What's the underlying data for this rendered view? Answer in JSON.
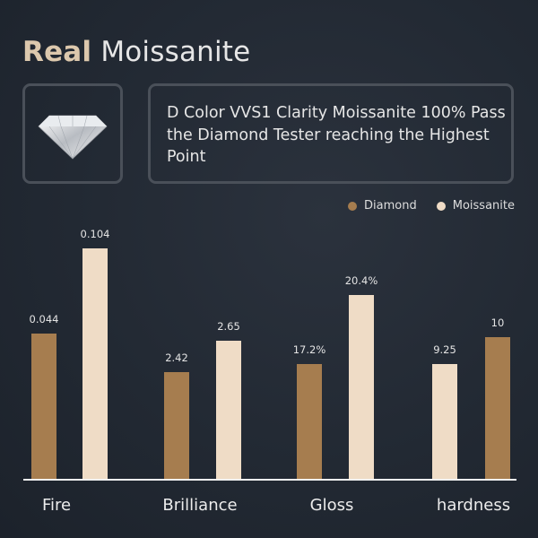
{
  "header": {
    "title_bold": "Real",
    "title_rest": "Moissanite"
  },
  "image_alt_icon": "diamond-gem-icon",
  "description": "D Color VVS1 Clarity Moissanite 100% Pass the Diamond Tester reaching the Highest Point",
  "colors": {
    "diamond": "#a67d4f",
    "moissanite": "#efdcc6",
    "title_accent": "#dcc8ad"
  },
  "chart_data": {
    "type": "bar",
    "title": "",
    "legend": {
      "placement": "top-right",
      "entries": [
        "Diamond",
        "Moissanite"
      ]
    },
    "categories": [
      "Fire",
      "Brilliance",
      "Gloss",
      "hardness"
    ],
    "groups": [
      {
        "category": "Fire",
        "bars": [
          {
            "series": "Diamond",
            "value": 0.044,
            "label": "0.044"
          },
          {
            "series": "Moissanite",
            "value": 0.104,
            "label": "0.104"
          }
        ]
      },
      {
        "category": "Brilliance",
        "bars": [
          {
            "series": "Diamond",
            "value": 2.42,
            "label": "2.42"
          },
          {
            "series": "Moissanite",
            "value": 2.65,
            "label": "2.65"
          }
        ]
      },
      {
        "category": "Gloss",
        "bars": [
          {
            "series": "Diamond",
            "value": 17.2,
            "label": "17.2%"
          },
          {
            "series": "Moissanite",
            "value": 20.4,
            "label": "20.4%"
          }
        ]
      },
      {
        "category": "hardness",
        "bars": [
          {
            "series": "Moissanite",
            "value": 9.25,
            "label": "9.25"
          },
          {
            "series": "Diamond",
            "value": 10,
            "label": "10"
          }
        ]
      }
    ],
    "grid": false,
    "y_axis_shown": false
  }
}
